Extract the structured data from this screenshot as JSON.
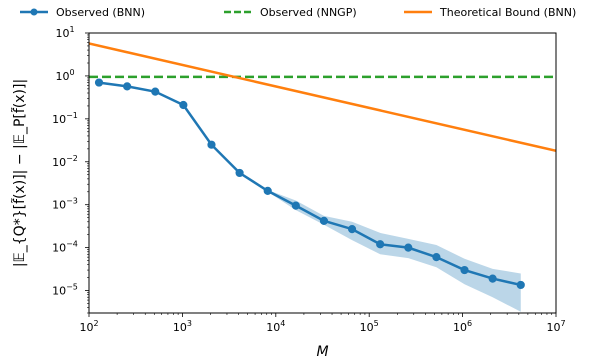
{
  "chart_data": {
    "type": "line",
    "xlabel": "M",
    "ylabel": "|𝔼_{Q*}[f̃(x)]| − |𝔼_P[f̃(x)]|",
    "x_scale": "log",
    "y_scale": "log",
    "xlim": [
      100,
      10000000
    ],
    "ylim": [
      3e-06,
      10
    ],
    "x_ticks": [
      {
        "value": 100,
        "base": "10",
        "exp": "2"
      },
      {
        "value": 1000,
        "base": "10",
        "exp": "3"
      },
      {
        "value": 10000,
        "base": "10",
        "exp": "4"
      },
      {
        "value": 100000,
        "base": "10",
        "exp": "5"
      },
      {
        "value": 1000000,
        "base": "10",
        "exp": "6"
      },
      {
        "value": 10000000,
        "base": "10",
        "exp": "7"
      }
    ],
    "y_ticks": [
      {
        "value": 1e-05,
        "base": "10",
        "exp": "−5"
      },
      {
        "value": 0.0001,
        "base": "10",
        "exp": "−4"
      },
      {
        "value": 0.001,
        "base": "10",
        "exp": "−3"
      },
      {
        "value": 0.01,
        "base": "10",
        "exp": "−2"
      },
      {
        "value": 0.1,
        "base": "10",
        "exp": "−1"
      },
      {
        "value": 1,
        "base": "10",
        "exp": "0"
      },
      {
        "value": 10,
        "base": "10",
        "exp": "1"
      }
    ],
    "legend_position": "top (above plot)",
    "grid": false,
    "series": [
      {
        "name": "Observed (BNN)",
        "style": "line-marker",
        "color": "#1f77b4",
        "x": [
          128,
          256,
          512,
          1024,
          2048,
          4096,
          8192,
          16384,
          32768,
          65536,
          131072,
          262144,
          524288,
          1048576,
          2097152,
          4194304
        ],
        "y": [
          0.7,
          0.57,
          0.43,
          0.21,
          0.025,
          0.0055,
          0.0021,
          0.00095,
          0.00042,
          0.00027,
          0.00012,
          0.0001,
          6e-05,
          3e-05,
          1.9e-05,
          1.35e-05
        ],
        "band_lower": [
          0.7,
          0.57,
          0.43,
          0.21,
          0.025,
          0.0055,
          0.002,
          0.00075,
          0.00034,
          0.00015,
          7e-05,
          5.7e-05,
          3.5e-05,
          1.4e-05,
          7e-06,
          3.2e-06
        ],
        "band_upper": [
          0.7,
          0.57,
          0.43,
          0.21,
          0.025,
          0.0055,
          0.0022,
          0.00125,
          0.00055,
          0.0004,
          0.00022,
          0.00016,
          0.000115,
          5.5e-05,
          3.2e-05,
          2.5e-05
        ]
      },
      {
        "name": "Observed (NNGP)",
        "style": "dashed",
        "color": "#2ca02c",
        "x": [
          100,
          10000000
        ],
        "y": [
          0.95,
          0.95
        ]
      },
      {
        "name": "Theoretical Bound (BNN)",
        "style": "solid",
        "color": "#ff7f0e",
        "x": [
          100,
          10000000
        ],
        "y": [
          5.7,
          0.018
        ]
      }
    ]
  }
}
